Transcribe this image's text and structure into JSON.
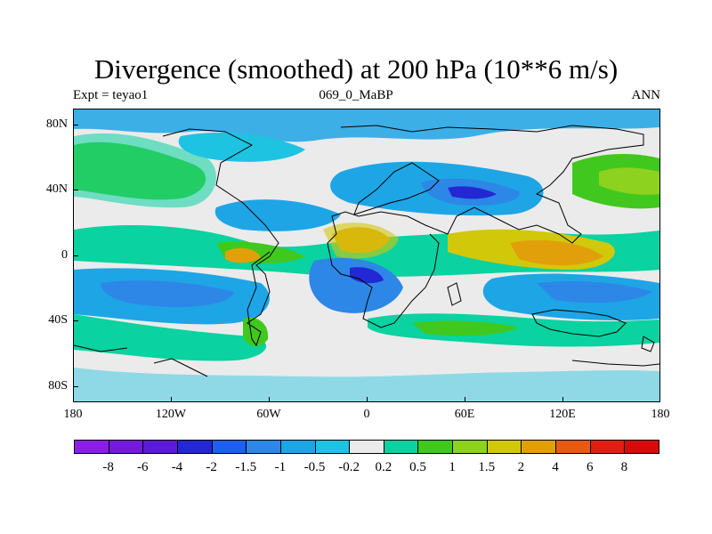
{
  "title": "Divergence (smoothed) at 200 hPa (10**6 m/s)",
  "subtitle_left": "Expt = teyao1",
  "subtitle_center": "069_0_MaBP",
  "subtitle_right": "ANN",
  "y_axis_labels": [
    "80N",
    "40N",
    "0",
    "40S",
    "80S"
  ],
  "x_axis_labels": [
    "180",
    "120W",
    "60W",
    "0",
    "60E",
    "120E",
    "180"
  ],
  "colorbar_labels": [
    "-8",
    "-6",
    "-4",
    "-2",
    "-1.5",
    "-1",
    "-0.5",
    "-0.2",
    "0.2",
    "0.5",
    "1",
    "1.5",
    "2",
    "4",
    "6",
    "8"
  ],
  "colorbar_colors": [
    "#8a1ee6",
    "#7519dc",
    "#5a1ad7",
    "#2328d2",
    "#1e5ff0",
    "#2d87e6",
    "#1ea5e6",
    "#1ec3e1",
    "#ebebeb",
    "#0ad2a0",
    "#41c81e",
    "#8cd21e",
    "#d2c80a",
    "#e1a00a",
    "#e65a14",
    "#e11e14",
    "#d70a0a"
  ],
  "colors": {
    "background": "#ffffff",
    "plot_background": "#ebebeb",
    "frame": "#000000"
  }
}
